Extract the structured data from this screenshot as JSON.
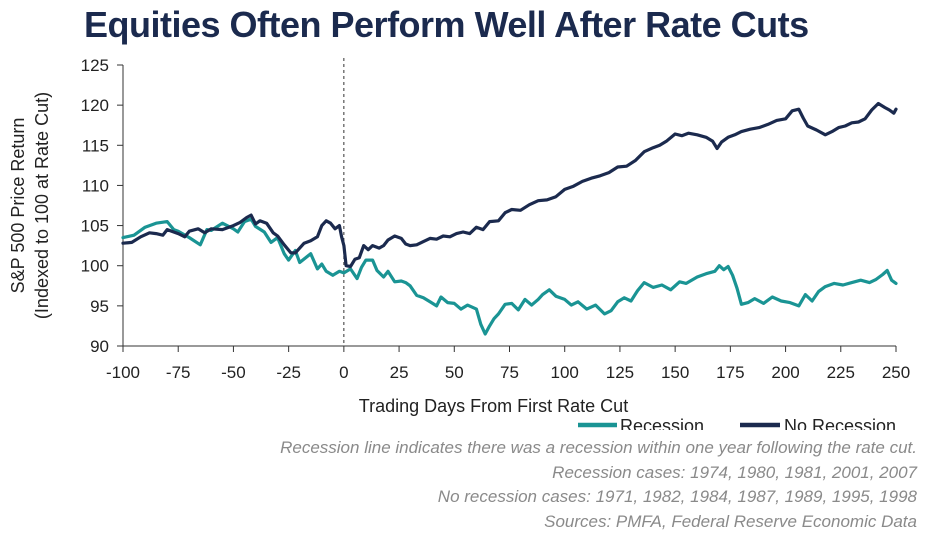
{
  "chart_data": {
    "type": "line",
    "title": "Equities Often Perform Well After Rate Cuts",
    "xlabel": "Trading Days From First Rate Cut",
    "ylabel": [
      "S&P 500 Price Return",
      "(Indexed to 100 at Rate Cut)"
    ],
    "xlim": [
      -100,
      250
    ],
    "ylim": [
      90,
      125
    ],
    "x_ticks": [
      "-100",
      "-75",
      "-50",
      "-25",
      "0",
      "25",
      "50",
      "75",
      "100",
      "125",
      "150",
      "175",
      "200",
      "225",
      "250"
    ],
    "y_ticks": [
      "90",
      "95",
      "100",
      "105",
      "110",
      "115",
      "120",
      "125"
    ],
    "vertical_reference_line_x": 0,
    "legend_position": "bottom-right",
    "grid": false,
    "series": [
      {
        "name": "Recession",
        "color": "#1a9494",
        "points": [
          [
            -100,
            103.5
          ],
          [
            -95,
            103.8
          ],
          [
            -90,
            104.8
          ],
          [
            -85,
            105.3
          ],
          [
            -80,
            105.5
          ],
          [
            -77,
            104.5
          ],
          [
            -75,
            104.3
          ],
          [
            -70,
            103.5
          ],
          [
            -65,
            102.6
          ],
          [
            -62,
            104.5
          ],
          [
            -60,
            104.4
          ],
          [
            -55,
            105.3
          ],
          [
            -50,
            104.6
          ],
          [
            -48,
            104.2
          ],
          [
            -45,
            105.5
          ],
          [
            -42,
            105.8
          ],
          [
            -40,
            104.9
          ],
          [
            -36,
            104.2
          ],
          [
            -33,
            102.9
          ],
          [
            -30,
            103.5
          ],
          [
            -27,
            101.5
          ],
          [
            -25,
            100.7
          ],
          [
            -22,
            101.9
          ],
          [
            -20,
            100.4
          ],
          [
            -15,
            101.5
          ],
          [
            -12,
            99.6
          ],
          [
            -10,
            100.2
          ],
          [
            -8,
            99.3
          ],
          [
            -5,
            98.8
          ],
          [
            -2,
            99.3
          ],
          [
            0,
            99.1
          ],
          [
            3,
            99.6
          ],
          [
            6,
            98.4
          ],
          [
            8,
            99.8
          ],
          [
            10,
            100.7
          ],
          [
            13,
            100.7
          ],
          [
            15,
            99.4
          ],
          [
            18,
            98.6
          ],
          [
            20,
            99.3
          ],
          [
            23,
            98.0
          ],
          [
            26,
            98.1
          ],
          [
            28,
            97.9
          ],
          [
            30,
            97.5
          ],
          [
            33,
            96.3
          ],
          [
            36,
            96.0
          ],
          [
            39,
            95.5
          ],
          [
            42,
            95.0
          ],
          [
            44,
            96.1
          ],
          [
            47,
            95.4
          ],
          [
            50,
            95.3
          ],
          [
            53,
            94.6
          ],
          [
            56,
            95.1
          ],
          [
            60,
            94.6
          ],
          [
            62,
            92.7
          ],
          [
            64,
            91.5
          ],
          [
            66,
            92.5
          ],
          [
            68,
            93.4
          ],
          [
            70,
            94.0
          ],
          [
            73,
            95.2
          ],
          [
            76,
            95.3
          ],
          [
            79,
            94.5
          ],
          [
            82,
            95.8
          ],
          [
            85,
            95.1
          ],
          [
            88,
            95.8
          ],
          [
            90,
            96.4
          ],
          [
            93,
            97.0
          ],
          [
            96,
            96.2
          ],
          [
            100,
            95.8
          ],
          [
            103,
            95.1
          ],
          [
            106,
            95.5
          ],
          [
            110,
            94.6
          ],
          [
            114,
            95.1
          ],
          [
            118,
            94.0
          ],
          [
            121,
            94.4
          ],
          [
            124,
            95.5
          ],
          [
            127,
            96.0
          ],
          [
            130,
            95.6
          ],
          [
            133,
            96.9
          ],
          [
            136,
            97.9
          ],
          [
            140,
            97.3
          ],
          [
            144,
            97.6
          ],
          [
            148,
            97.0
          ],
          [
            152,
            98.0
          ],
          [
            155,
            97.8
          ],
          [
            160,
            98.6
          ],
          [
            164,
            99.0
          ],
          [
            168,
            99.3
          ],
          [
            170,
            100.0
          ],
          [
            172,
            99.5
          ],
          [
            174,
            99.9
          ],
          [
            176,
            98.8
          ],
          [
            178,
            97.2
          ],
          [
            180,
            95.2
          ],
          [
            183,
            95.4
          ],
          [
            186,
            95.9
          ],
          [
            190,
            95.3
          ],
          [
            194,
            96.1
          ],
          [
            198,
            95.6
          ],
          [
            202,
            95.4
          ],
          [
            206,
            95.0
          ],
          [
            209,
            96.4
          ],
          [
            212,
            95.6
          ],
          [
            215,
            96.8
          ],
          [
            218,
            97.4
          ],
          [
            222,
            97.8
          ],
          [
            226,
            97.6
          ],
          [
            230,
            97.9
          ],
          [
            234,
            98.2
          ],
          [
            238,
            97.9
          ],
          [
            241,
            98.3
          ],
          [
            244,
            98.9
          ],
          [
            246,
            99.4
          ],
          [
            248,
            98.2
          ],
          [
            250,
            97.8
          ]
        ]
      },
      {
        "name": "No Recession",
        "color": "#1b2a4e",
        "points": [
          [
            -100,
            102.8
          ],
          [
            -96,
            102.9
          ],
          [
            -92,
            103.6
          ],
          [
            -88,
            104.1
          ],
          [
            -85,
            104.0
          ],
          [
            -82,
            103.8
          ],
          [
            -80,
            104.5
          ],
          [
            -75,
            104.0
          ],
          [
            -72,
            103.6
          ],
          [
            -70,
            104.3
          ],
          [
            -66,
            104.6
          ],
          [
            -63,
            104.1
          ],
          [
            -60,
            104.6
          ],
          [
            -55,
            104.5
          ],
          [
            -50,
            105.0
          ],
          [
            -47,
            105.4
          ],
          [
            -44,
            106.0
          ],
          [
            -42,
            106.3
          ],
          [
            -40,
            105.2
          ],
          [
            -38,
            105.6
          ],
          [
            -35,
            105.3
          ],
          [
            -32,
            104.1
          ],
          [
            -30,
            103.7
          ],
          [
            -27,
            102.6
          ],
          [
            -24,
            101.6
          ],
          [
            -22,
            101.6
          ],
          [
            -20,
            102.2
          ],
          [
            -18,
            102.8
          ],
          [
            -15,
            103.1
          ],
          [
            -12,
            103.6
          ],
          [
            -10,
            105.0
          ],
          [
            -8,
            105.6
          ],
          [
            -6,
            105.3
          ],
          [
            -4,
            104.6
          ],
          [
            -2,
            105.0
          ],
          [
            -1,
            103.6
          ],
          [
            0,
            102.5
          ],
          [
            1,
            100.0
          ],
          [
            3,
            99.9
          ],
          [
            5,
            100.8
          ],
          [
            7,
            101.0
          ],
          [
            9,
            102.5
          ],
          [
            11,
            102.0
          ],
          [
            13,
            102.5
          ],
          [
            16,
            102.2
          ],
          [
            18,
            102.5
          ],
          [
            20,
            103.2
          ],
          [
            23,
            103.7
          ],
          [
            26,
            103.4
          ],
          [
            28,
            102.7
          ],
          [
            30,
            102.5
          ],
          [
            33,
            102.6
          ],
          [
            36,
            103.0
          ],
          [
            39,
            103.4
          ],
          [
            42,
            103.3
          ],
          [
            45,
            103.7
          ],
          [
            48,
            103.6
          ],
          [
            51,
            104.0
          ],
          [
            54,
            104.2
          ],
          [
            57,
            104.0
          ],
          [
            60,
            104.8
          ],
          [
            63,
            104.5
          ],
          [
            66,
            105.5
          ],
          [
            70,
            105.6
          ],
          [
            73,
            106.6
          ],
          [
            76,
            107.0
          ],
          [
            80,
            106.9
          ],
          [
            84,
            107.6
          ],
          [
            88,
            108.1
          ],
          [
            92,
            108.2
          ],
          [
            96,
            108.6
          ],
          [
            100,
            109.5
          ],
          [
            104,
            109.9
          ],
          [
            108,
            110.5
          ],
          [
            112,
            110.9
          ],
          [
            116,
            111.2
          ],
          [
            120,
            111.6
          ],
          [
            124,
            112.3
          ],
          [
            128,
            112.4
          ],
          [
            132,
            113.1
          ],
          [
            136,
            114.2
          ],
          [
            140,
            114.7
          ],
          [
            143,
            115.0
          ],
          [
            146,
            115.5
          ],
          [
            150,
            116.4
          ],
          [
            153,
            116.2
          ],
          [
            156,
            116.5
          ],
          [
            160,
            116.3
          ],
          [
            164,
            116.0
          ],
          [
            167,
            115.5
          ],
          [
            169,
            114.6
          ],
          [
            171,
            115.4
          ],
          [
            174,
            116.0
          ],
          [
            177,
            116.3
          ],
          [
            180,
            116.7
          ],
          [
            184,
            117.0
          ],
          [
            188,
            117.2
          ],
          [
            192,
            117.6
          ],
          [
            196,
            118.1
          ],
          [
            200,
            118.3
          ],
          [
            203,
            119.3
          ],
          [
            206,
            119.5
          ],
          [
            208,
            118.4
          ],
          [
            210,
            117.4
          ],
          [
            214,
            116.9
          ],
          [
            218,
            116.3
          ],
          [
            221,
            116.7
          ],
          [
            224,
            117.2
          ],
          [
            227,
            117.4
          ],
          [
            230,
            117.8
          ],
          [
            233,
            117.9
          ],
          [
            236,
            118.3
          ],
          [
            239,
            119.4
          ],
          [
            242,
            120.2
          ],
          [
            245,
            119.7
          ],
          [
            247,
            119.4
          ],
          [
            249,
            119.0
          ],
          [
            250,
            119.5
          ]
        ]
      }
    ],
    "notes": [
      "Recession line indicates there was a recession within one year following the rate cut.",
      "Recession cases: 1974, 1980, 1981, 2001, 2007",
      "No recession cases: 1971, 1982, 1984, 1987, 1989, 1995, 1998",
      "Sources: PMFA, Federal Reserve Economic Data"
    ]
  }
}
